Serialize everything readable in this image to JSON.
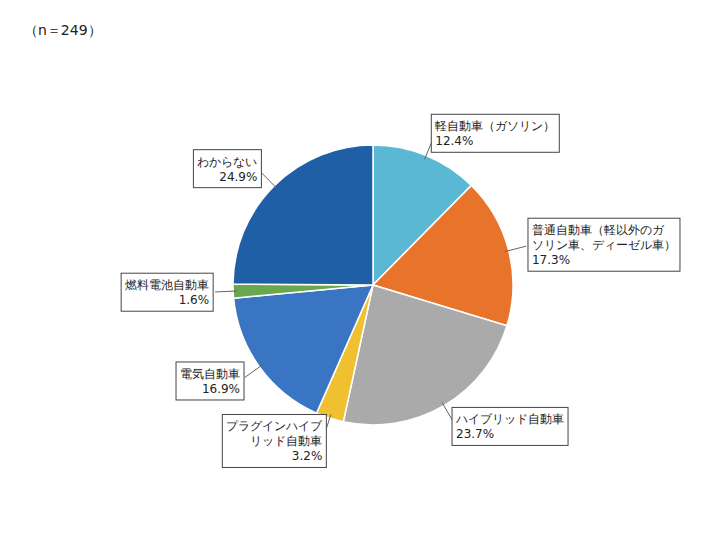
{
  "chart_data": {
    "type": "pie",
    "categories": [
      "軽自動車（ガソリン）",
      "普通自動車（軽以外のガ\nソリン車、ディーゼル車）",
      "ハイブリッド自動車",
      "プラグインハイブ\nリッド自動車",
      "電気自動車",
      "燃料電池自動車",
      "わからない"
    ],
    "values": [
      12.4,
      17.3,
      23.7,
      3.2,
      16.9,
      1.6,
      24.9
    ],
    "value_labels": [
      "12.4%",
      "17.3%",
      "23.7%",
      "3.2%",
      "16.9%",
      "1.6%",
      "24.9%"
    ],
    "colors": [
      "#5BB8D4",
      "#E8732A",
      "#AAAAAA",
      "#F0C030",
      "#3A75C4",
      "#6AA84F",
      "#1F5FA6"
    ],
    "data_labels": true,
    "annotation": "（n＝249）"
  }
}
